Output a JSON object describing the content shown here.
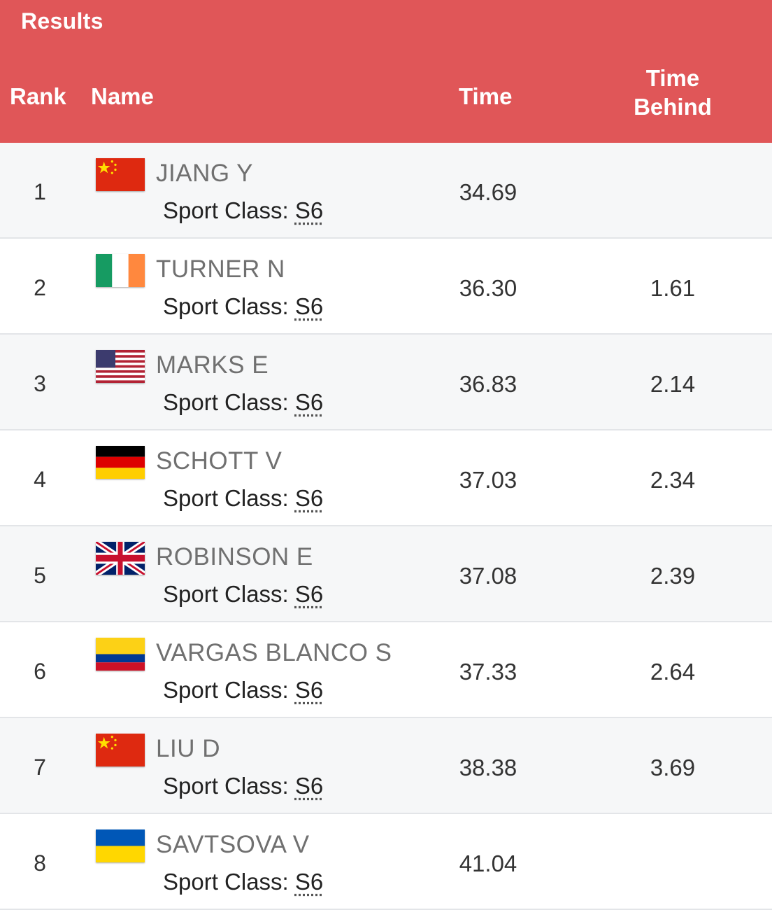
{
  "header": {
    "title": "Results",
    "col_rank": "Rank",
    "col_name": "Name",
    "col_time": "Time",
    "col_behind": "Time Behind"
  },
  "sport_class_label": "Sport Class:",
  "results": [
    {
      "rank": "1",
      "name": "JIANG Y",
      "flag": "china-flag-icon",
      "sport_class": "S6",
      "time": "34.69",
      "behind": ""
    },
    {
      "rank": "2",
      "name": "TURNER N",
      "flag": "ireland-flag-icon",
      "sport_class": "S6",
      "time": "36.30",
      "behind": "1.61"
    },
    {
      "rank": "3",
      "name": "MARKS E",
      "flag": "usa-flag-icon",
      "sport_class": "S6",
      "time": "36.83",
      "behind": "2.14"
    },
    {
      "rank": "4",
      "name": "SCHOTT V",
      "flag": "germany-flag-icon",
      "sport_class": "S6",
      "time": "37.03",
      "behind": "2.34"
    },
    {
      "rank": "5",
      "name": "ROBINSON E",
      "flag": "great-britain-flag-icon",
      "sport_class": "S6",
      "time": "37.08",
      "behind": "2.39"
    },
    {
      "rank": "6",
      "name": "VARGAS BLANCO S",
      "flag": "colombia-flag-icon",
      "sport_class": "S6",
      "time": "37.33",
      "behind": "2.64"
    },
    {
      "rank": "7",
      "name": "LIU D",
      "flag": "china-flag-icon",
      "sport_class": "S6",
      "time": "38.38",
      "behind": "3.69"
    },
    {
      "rank": "8",
      "name": "SAVTSOVA V",
      "flag": "ukraine-flag-icon",
      "sport_class": "S6",
      "time": "41.04",
      "behind": ""
    }
  ],
  "colors": {
    "header_bg": "#e05658",
    "header_text": "#ffffff",
    "row_alt_bg": "#f6f7f8"
  }
}
